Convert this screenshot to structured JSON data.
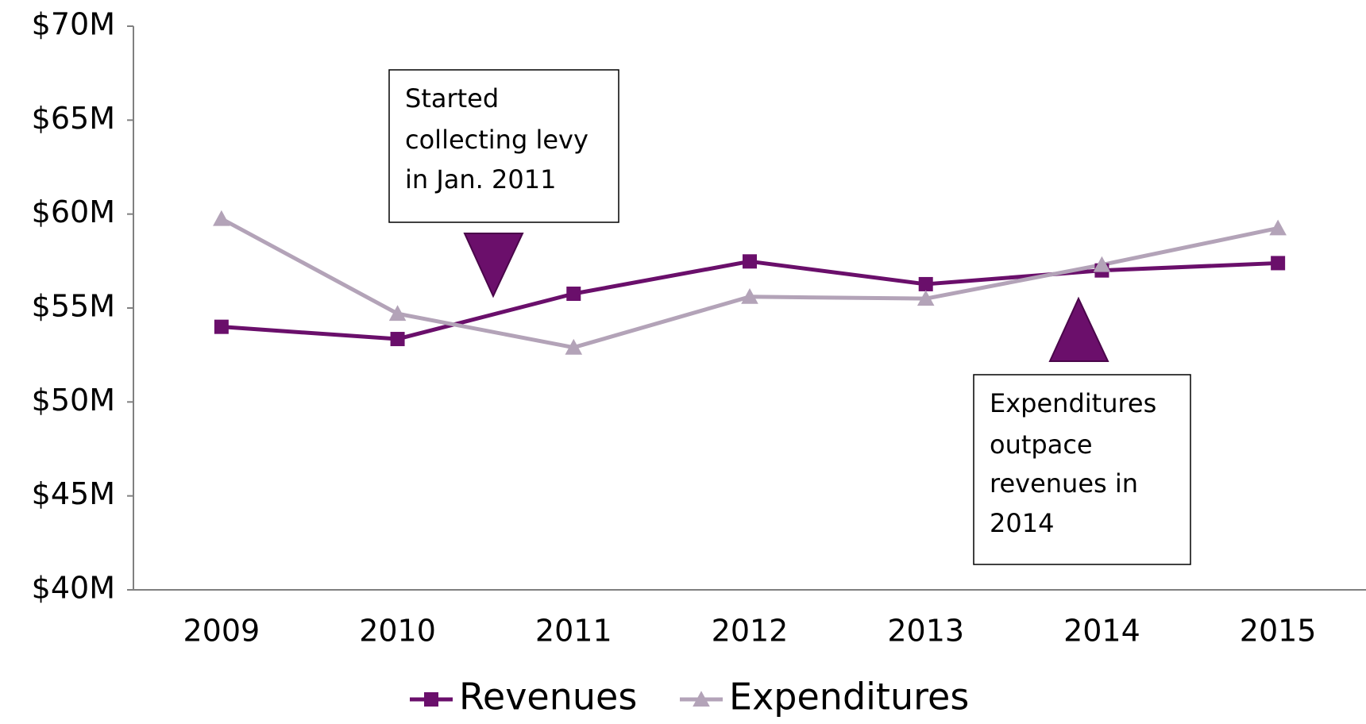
{
  "chart_data": {
    "type": "line",
    "categories": [
      "2009",
      "2010",
      "2011",
      "2012",
      "2013",
      "2014",
      "2015"
    ],
    "series": [
      {
        "name": "Revenues",
        "color": "#6a0f6b",
        "marker": "square",
        "values": [
          54.0,
          53.35,
          55.76,
          57.48,
          56.27,
          57.0,
          57.39
        ]
      },
      {
        "name": "Expenditures",
        "color": "#b3a3b8",
        "marker": "triangle",
        "values": [
          59.75,
          54.7,
          52.9,
          55.6,
          55.5,
          57.3,
          59.25
        ]
      }
    ],
    "ylim": [
      40,
      70
    ],
    "yticks": [
      {
        "value": 40,
        "label": "$40M"
      },
      {
        "value": 45,
        "label": "$45M"
      },
      {
        "value": 50,
        "label": "$50M"
      },
      {
        "value": 55,
        "label": "$55M"
      },
      {
        "value": 60,
        "label": "$60M"
      },
      {
        "value": 65,
        "label": "$65M"
      },
      {
        "value": 70,
        "label": "$70M"
      }
    ],
    "annotations": [
      {
        "lines": [
          "Started",
          "collecting levy",
          "in Jan. 2011"
        ]
      },
      {
        "lines": [
          "Expenditures",
          "outpace",
          "revenues in",
          "2014"
        ]
      }
    ],
    "legend": "bottom"
  }
}
